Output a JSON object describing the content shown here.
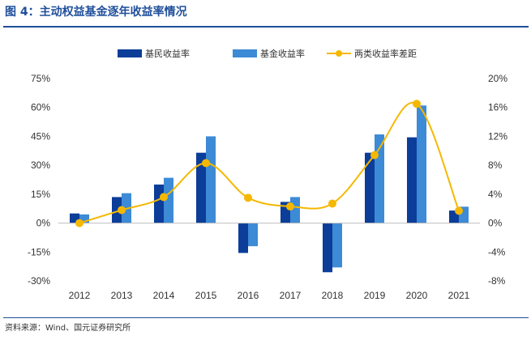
{
  "figure": {
    "title": "图 4：主动权益基金逐年收益率情况",
    "source": "资料来源：Wind、国元证券研究所"
  },
  "colors": {
    "title": "#1f4e9a",
    "series_a": "#0b3d99",
    "series_b": "#3d8ad6",
    "series_c": "#f5b800",
    "axis": "#bfbfbf",
    "text": "#333333"
  },
  "chart_data": {
    "type": "bar",
    "categories": [
      "2012",
      "2013",
      "2014",
      "2015",
      "2016",
      "2017",
      "2018",
      "2019",
      "2020",
      "2021"
    ],
    "series": [
      {
        "name": "基民收益率",
        "type": "bar",
        "axis": "left",
        "values": [
          5,
          13.5,
          20,
          36.5,
          -15.5,
          11,
          -25.5,
          36.5,
          44.5,
          6.5
        ]
      },
      {
        "name": "基金收益率",
        "type": "bar",
        "axis": "left",
        "values": [
          4.5,
          15.5,
          23.5,
          45,
          -12,
          13.5,
          -23,
          46,
          61,
          8.5
        ]
      },
      {
        "name": "两类收益率差距",
        "type": "line",
        "smooth": true,
        "axis": "right",
        "values": [
          0,
          1.8,
          3.6,
          8.3,
          3.5,
          2.3,
          2.7,
          9.4,
          16.5,
          1.7
        ]
      }
    ],
    "y_left": {
      "lim": [
        -30,
        75
      ],
      "ticks": [
        "-30%",
        "-15%",
        "0%",
        "15%",
        "30%",
        "45%",
        "60%",
        "75%"
      ]
    },
    "y_right": {
      "lim": [
        -8,
        20
      ],
      "ticks": [
        "-8%",
        "-4%",
        "0%",
        "4%",
        "8%",
        "12%",
        "16%",
        "20%"
      ]
    },
    "legend_position": "top-center",
    "grid": false
  }
}
